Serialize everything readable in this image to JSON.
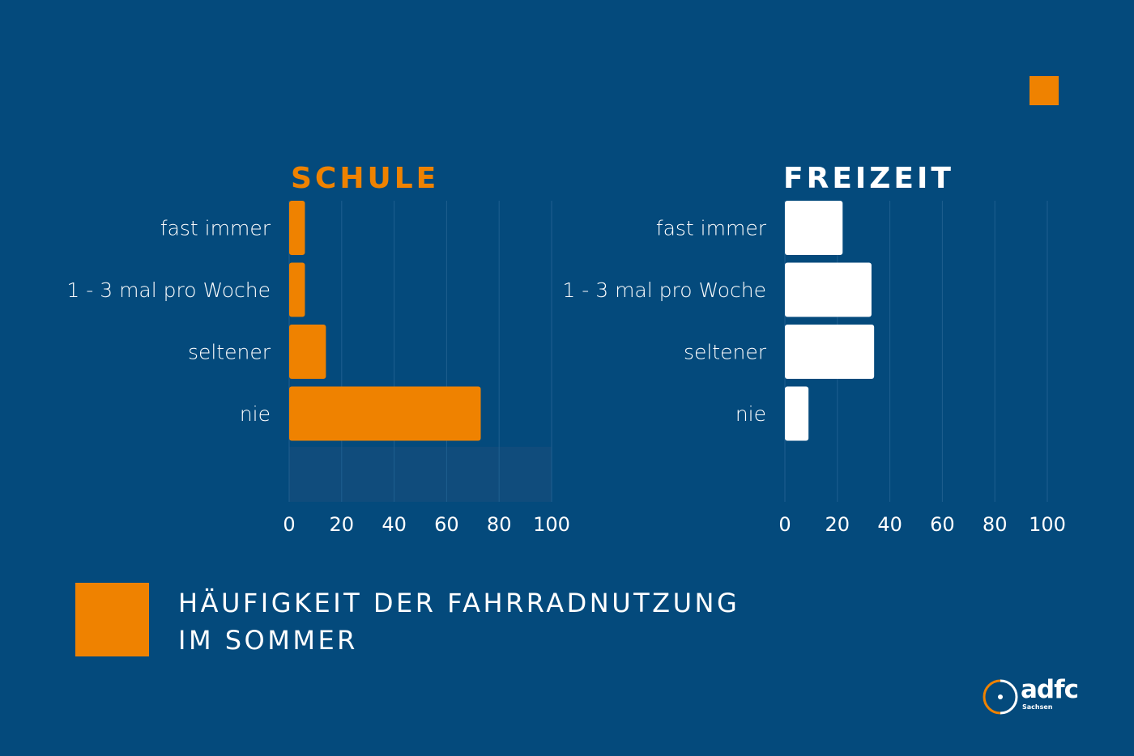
{
  "colors": {
    "background": "#044a7c",
    "accent": "#ef8200",
    "white": "#ffffff",
    "grid": "#1f5f8f",
    "empty_band": "#104c7c"
  },
  "caption": {
    "line1": "HÄUFIGKEIT DER FAHRRADNUTZUNG",
    "line2": "IM SOMMER"
  },
  "logo": {
    "name": "adfc",
    "sub": "Sachsen",
    "icon": "bicycle-wheel-icon"
  },
  "chart_data": [
    {
      "type": "bar",
      "orientation": "horizontal",
      "title": "SCHULE",
      "categories": [
        "fast immer",
        "1 - 3 mal pro Woche",
        "seltener",
        "nie"
      ],
      "values": [
        6,
        6,
        14,
        73
      ],
      "xlim": [
        0,
        100
      ],
      "xticks": [
        "0",
        "20",
        "40",
        "60",
        "80",
        "100"
      ],
      "grid": true,
      "color": "#ef8200"
    },
    {
      "type": "bar",
      "orientation": "horizontal",
      "title": "FREIZEIT",
      "categories": [
        "fast immer",
        "1 - 3 mal pro Woche",
        "seltener",
        "nie"
      ],
      "values": [
        22,
        33,
        34,
        9
      ],
      "xlim": [
        0,
        100
      ],
      "xticks": [
        "0",
        "20",
        "40",
        "60",
        "80",
        "100"
      ],
      "grid": true,
      "color": "#ffffff"
    }
  ]
}
